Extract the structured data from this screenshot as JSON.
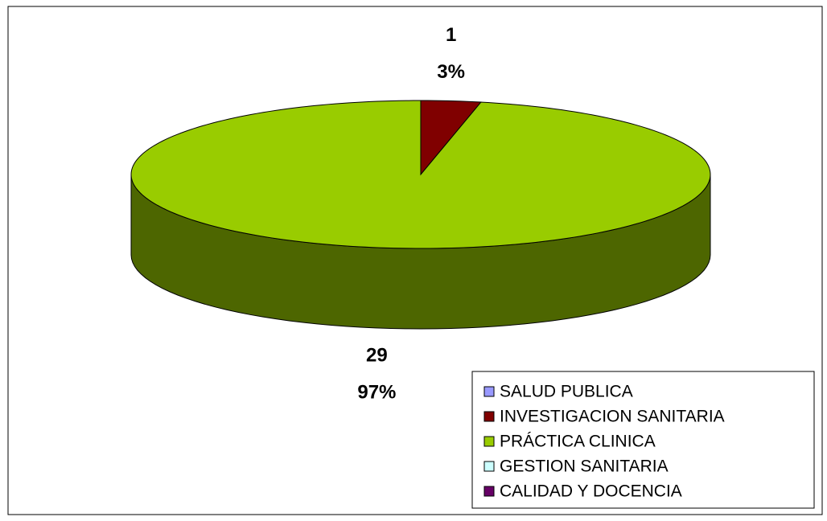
{
  "chart_data": {
    "type": "pie3d",
    "categories": [
      "SALUD PUBLICA",
      "INVESTIGACION SANITARIA",
      "PRÁCTICA CLINICA",
      "GESTION SANITARIA",
      "CALIDAD Y DOCENCIA"
    ],
    "values": [
      0,
      1,
      29,
      0,
      0
    ],
    "percentages": [
      0,
      3,
      97,
      0,
      0
    ],
    "percentage_labels": [
      null,
      "3%",
      "97%",
      null,
      null
    ],
    "colors": [
      "#9999ff",
      "#800000",
      "#99cc00",
      "#ccffff",
      "#660066"
    ],
    "legend": "bottom-right"
  }
}
